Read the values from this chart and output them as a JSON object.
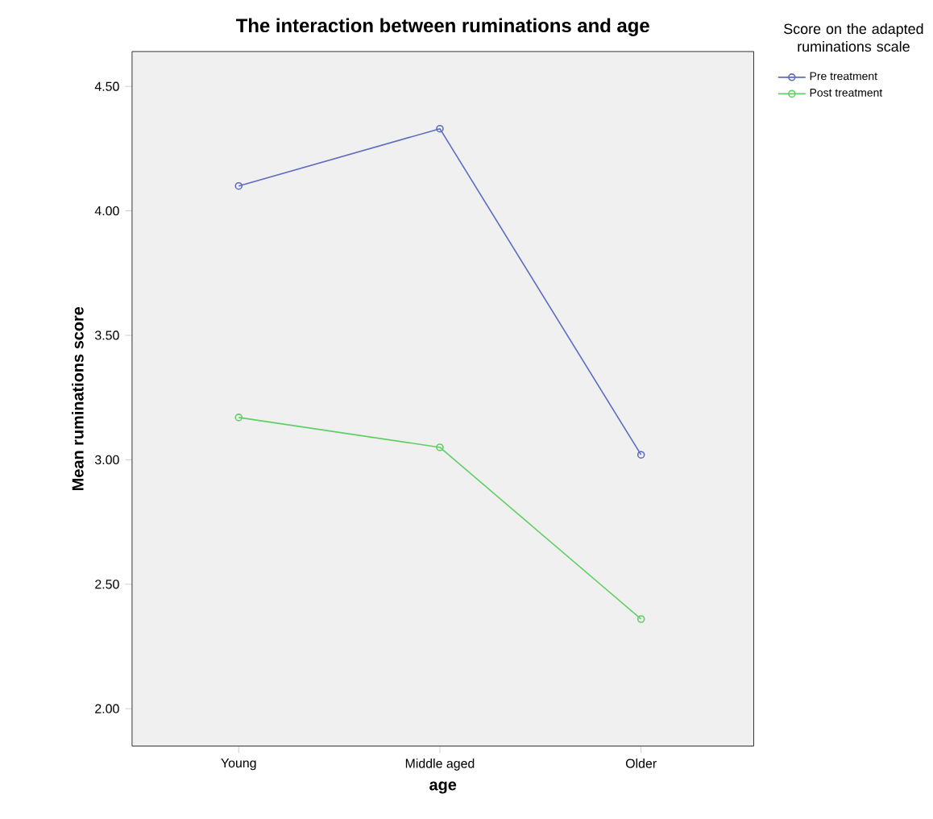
{
  "chart_data": {
    "type": "line",
    "title": "The interaction between ruminations and age",
    "xlabel": "age",
    "ylabel": "Mean ruminations score",
    "legend_title": "Score on the adapted ruminations scale",
    "categories": [
      "Young",
      "Middle aged",
      "Older"
    ],
    "series": [
      {
        "name": "Pre treatment",
        "color": "#5c6bc0",
        "values": [
          4.1,
          4.33,
          3.02
        ]
      },
      {
        "name": "Post treatment",
        "color": "#5fcf65",
        "values": [
          3.17,
          3.05,
          2.36
        ]
      }
    ],
    "ylim": [
      1.85,
      4.64
    ],
    "yticks": [
      {
        "value": 2.0,
        "label": "2.00"
      },
      {
        "value": 2.5,
        "label": "2.50"
      },
      {
        "value": 3.0,
        "label": "3.00"
      },
      {
        "value": 3.5,
        "label": "3.50"
      },
      {
        "value": 4.0,
        "label": "4.00"
      },
      {
        "value": 4.5,
        "label": "4.50"
      }
    ],
    "legend": "top right",
    "marker": "circle",
    "line_style": "solid",
    "grid": false
  }
}
